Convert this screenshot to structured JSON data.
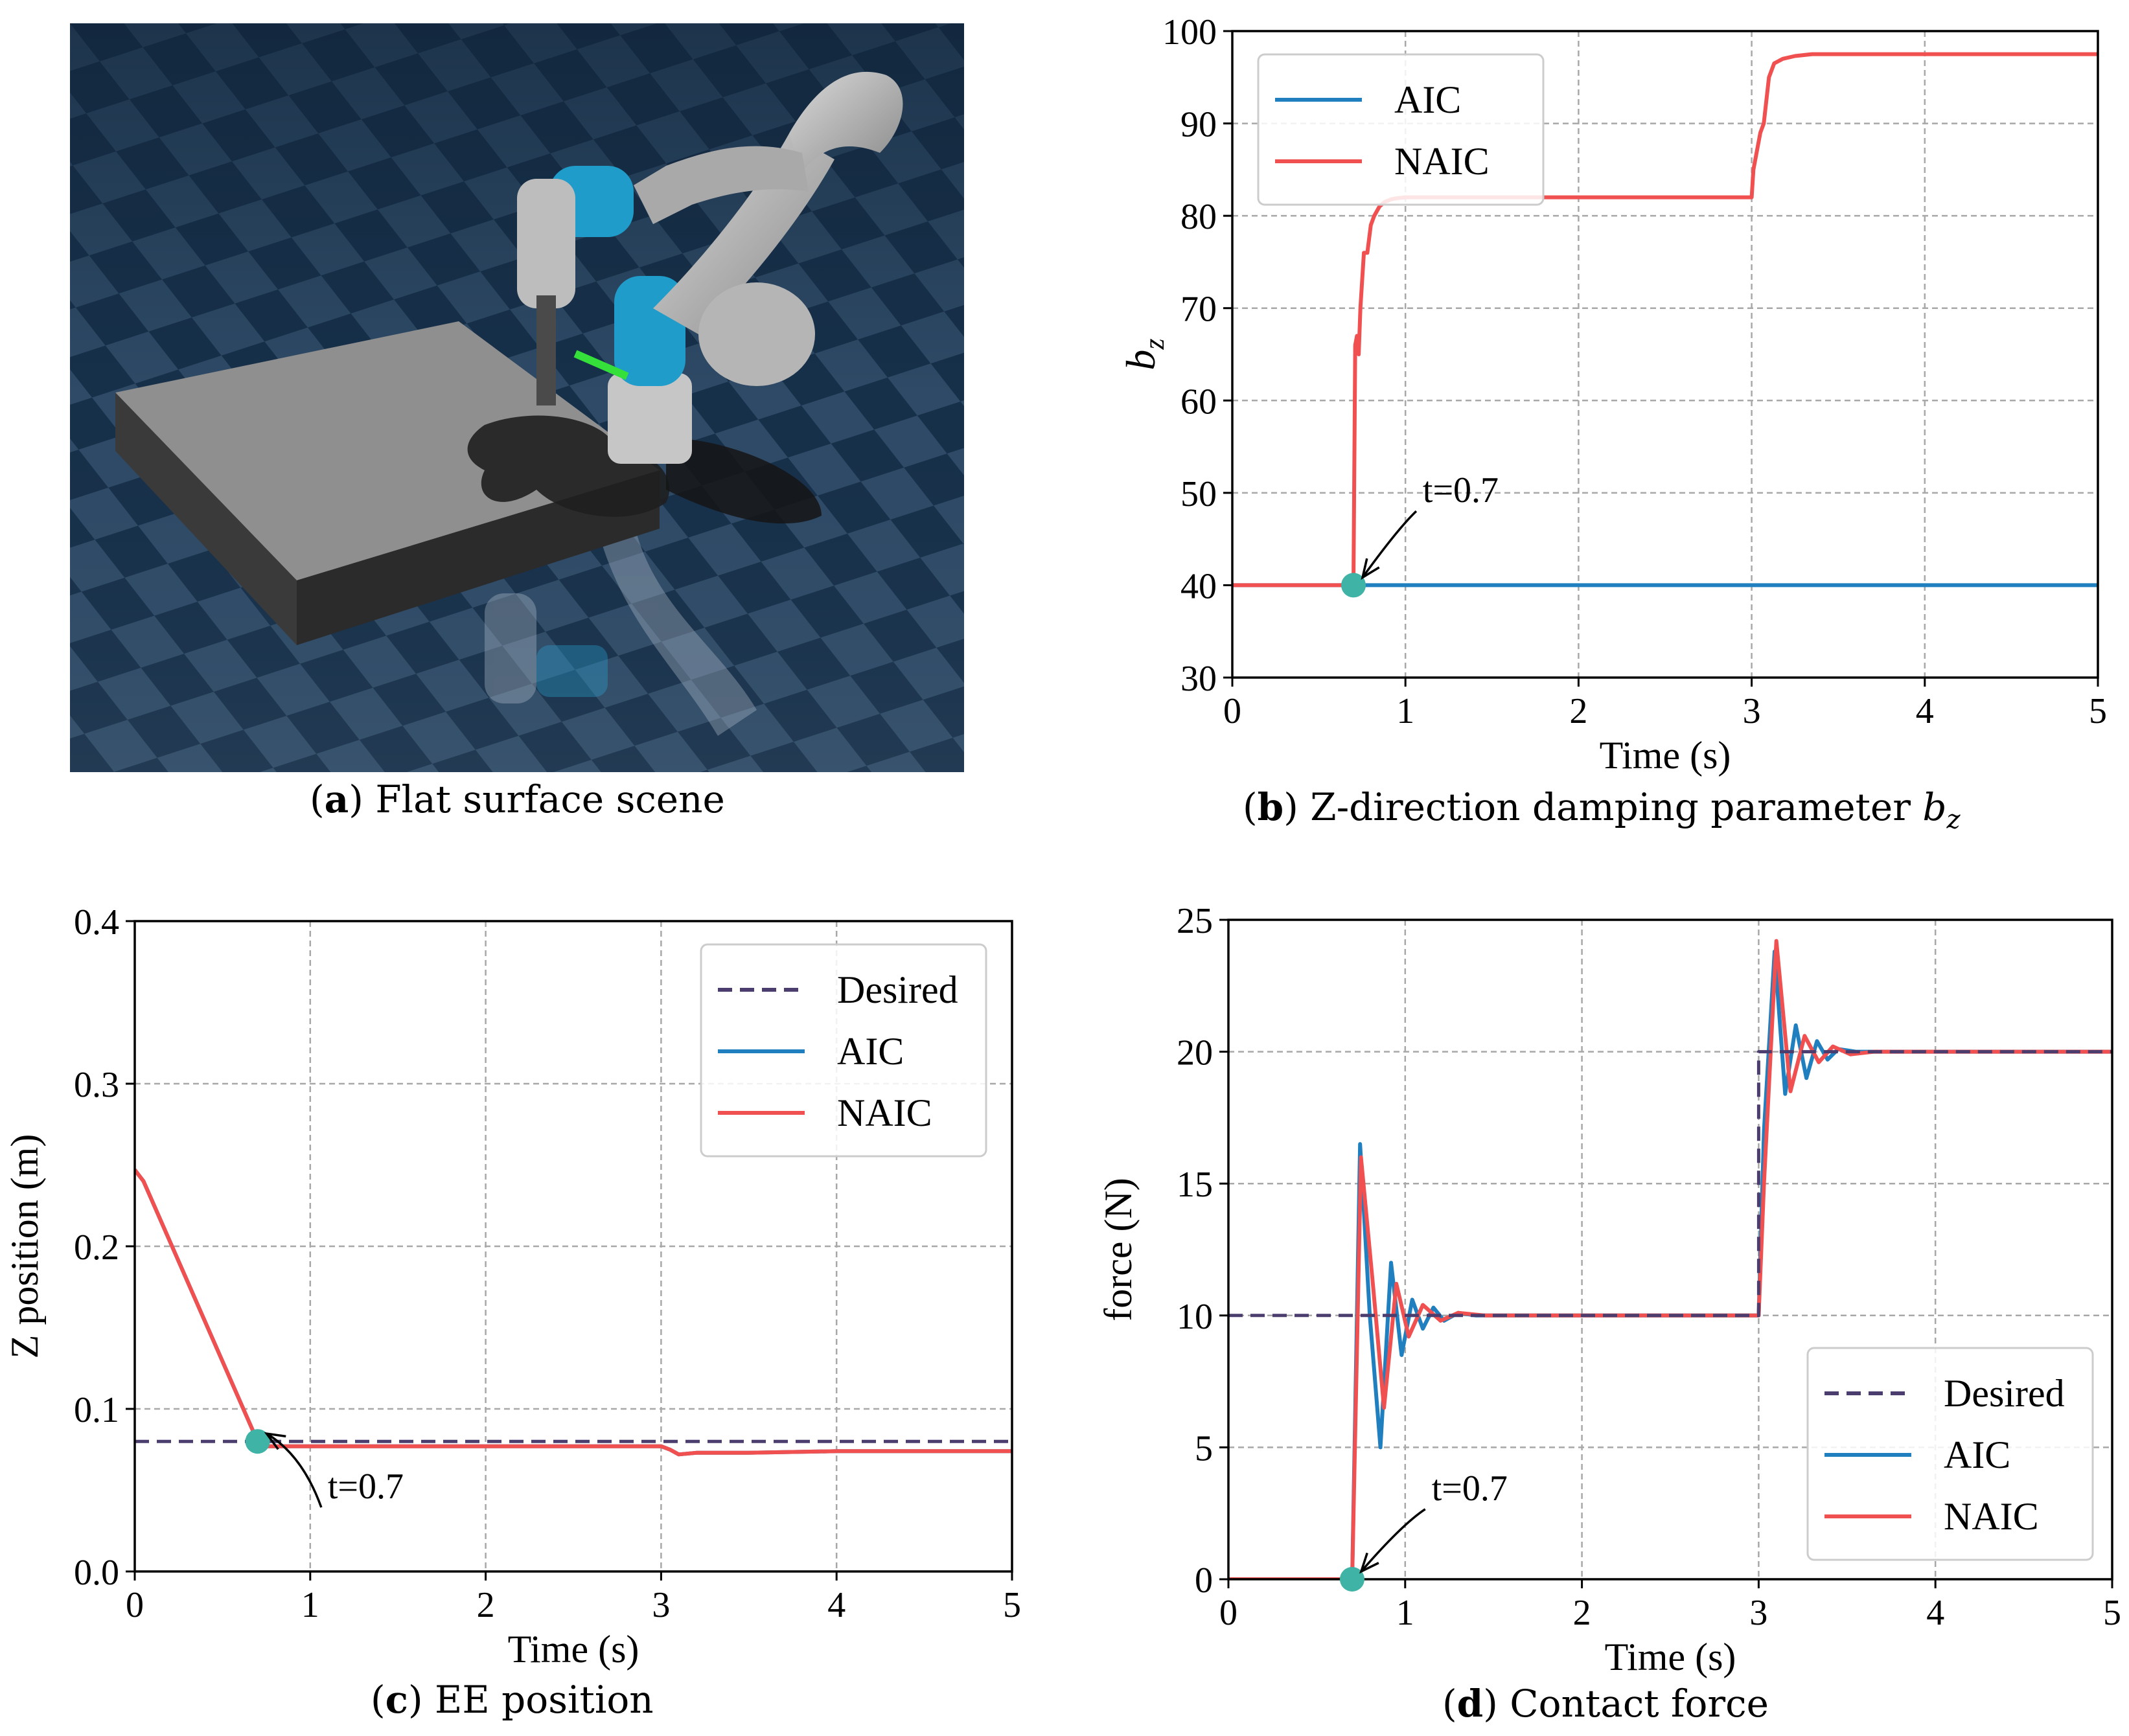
{
  "colors": {
    "aic": "#1f7fbf",
    "naic": "#f05050",
    "desired": "#4b3d6e",
    "marker": "#3fb3a6",
    "grid": "#a8a8a8"
  },
  "panel_a": {
    "caption_label": "a",
    "caption_text": "Flat surface scene"
  },
  "chart_data": [
    {
      "id": "b",
      "type": "line",
      "caption_label": "b",
      "caption_text": "Z-direction damping parameter ",
      "caption_symbol": "b",
      "caption_sub": "z",
      "xlabel": "Time (s)",
      "ylabel": "b",
      "ylabel_sub": "z",
      "xlim": [
        0,
        5
      ],
      "ylim": [
        30,
        100
      ],
      "xticks": [
        0,
        1,
        2,
        3,
        4,
        5
      ],
      "yticks": [
        30,
        40,
        50,
        60,
        70,
        80,
        90,
        100
      ],
      "grid": true,
      "legend_position": "top-left",
      "legend": [
        {
          "name": "AIC",
          "style": "solid",
          "color": "#1f7fbf"
        },
        {
          "name": "NAIC",
          "style": "solid",
          "color": "#f05050"
        }
      ],
      "annotation": {
        "text": "t=0.7",
        "x": 0.7,
        "y": 40,
        "text_x": 1.1,
        "text_y": 49
      },
      "series": [
        {
          "name": "AIC",
          "color": "#1f7fbf",
          "style": "solid",
          "x": [
            0,
            5
          ],
          "y": [
            40,
            40
          ]
        },
        {
          "name": "NAIC",
          "color": "#f05050",
          "style": "solid",
          "x": [
            0,
            0.68,
            0.7,
            0.71,
            0.72,
            0.73,
            0.74,
            0.75,
            0.76,
            0.78,
            0.8,
            0.82,
            0.85,
            0.88,
            0.92,
            0.95,
            1.0,
            1.5,
            2.0,
            2.5,
            3.0,
            3.01,
            3.05,
            3.07,
            3.1,
            3.13,
            3.18,
            3.25,
            3.35,
            3.5,
            4.0,
            5.0
          ],
          "y": [
            40,
            40,
            40,
            66,
            67,
            65,
            70,
            73,
            76,
            76,
            79,
            80,
            81,
            81.5,
            81.8,
            81.9,
            82,
            82,
            82,
            82,
            82,
            85,
            89,
            90,
            95,
            96.5,
            97,
            97.3,
            97.5,
            97.5,
            97.5,
            97.5
          ]
        }
      ]
    },
    {
      "id": "c",
      "type": "line",
      "caption_label": "c",
      "caption_text": "EE position",
      "xlabel": "Time (s)",
      "ylabel": "Z position (m)",
      "xlim": [
        0,
        5
      ],
      "ylim": [
        0.0,
        0.4
      ],
      "xticks": [
        0,
        1,
        2,
        3,
        4,
        5
      ],
      "yticks": [
        0.0,
        0.1,
        0.2,
        0.3,
        0.4
      ],
      "grid": true,
      "legend_position": "top-right",
      "legend": [
        {
          "name": "Desired",
          "style": "dashed",
          "color": "#4b3d6e"
        },
        {
          "name": "AIC",
          "style": "solid",
          "color": "#1f7fbf"
        },
        {
          "name": "NAIC",
          "style": "solid",
          "color": "#f05050"
        }
      ],
      "annotation": {
        "text": "t=0.7",
        "x": 0.7,
        "y": 0.08,
        "text_x": 1.1,
        "text_y": 0.045
      },
      "series": [
        {
          "name": "Desired",
          "color": "#4b3d6e",
          "style": "dashed",
          "x": [
            0,
            5
          ],
          "y": [
            0.08,
            0.08
          ]
        },
        {
          "name": "AIC",
          "color": "#1f7fbf",
          "style": "solid",
          "x": [
            0,
            0.05,
            0.7,
            0.75,
            1.0,
            2.0,
            3.0,
            3.05,
            3.1,
            3.2,
            3.5,
            4.0,
            5.0
          ],
          "y": [
            0.247,
            0.24,
            0.08,
            0.077,
            0.077,
            0.077,
            0.077,
            0.075,
            0.072,
            0.073,
            0.073,
            0.074,
            0.074
          ]
        },
        {
          "name": "NAIC",
          "color": "#f05050",
          "style": "solid",
          "x": [
            0,
            0.05,
            0.7,
            0.75,
            1.0,
            2.0,
            3.0,
            3.05,
            3.1,
            3.2,
            3.5,
            4.0,
            5.0
          ],
          "y": [
            0.247,
            0.24,
            0.08,
            0.077,
            0.077,
            0.077,
            0.077,
            0.075,
            0.072,
            0.073,
            0.073,
            0.074,
            0.074
          ]
        }
      ]
    },
    {
      "id": "d",
      "type": "line",
      "caption_label": "d",
      "caption_text": "Contact force",
      "xlabel": "Time (s)",
      "ylabel": "force (N)",
      "xlim": [
        0,
        5
      ],
      "ylim": [
        0,
        25
      ],
      "xticks": [
        0,
        1,
        2,
        3,
        4,
        5
      ],
      "yticks": [
        0,
        5,
        10,
        15,
        20,
        25
      ],
      "grid": true,
      "legend_position": "bottom-right",
      "legend": [
        {
          "name": "Desired",
          "style": "dashed",
          "color": "#4b3d6e"
        },
        {
          "name": "AIC",
          "style": "solid",
          "color": "#1f7fbf"
        },
        {
          "name": "NAIC",
          "style": "solid",
          "color": "#f05050"
        }
      ],
      "annotation": {
        "text": "t=0.7",
        "x": 0.7,
        "y": 0,
        "text_x": 1.15,
        "text_y": 3
      },
      "series": [
        {
          "name": "Desired",
          "color": "#4b3d6e",
          "style": "dashed",
          "x": [
            0,
            3.0,
            3.0,
            5
          ],
          "y": [
            10,
            10,
            20,
            20
          ]
        },
        {
          "name": "AIC",
          "color": "#1f7fbf",
          "style": "solid",
          "x": [
            0,
            0.68,
            0.7,
            0.745,
            0.8,
            0.86,
            0.92,
            0.98,
            1.04,
            1.1,
            1.16,
            1.22,
            1.3,
            1.4,
            1.6,
            2.0,
            2.5,
            2.99,
            3.0,
            3.03,
            3.09,
            3.15,
            3.21,
            3.27,
            3.33,
            3.39,
            3.45,
            3.55,
            3.7,
            4.0,
            5.0
          ],
          "y": [
            0,
            0,
            0,
            16.5,
            10,
            5,
            12,
            8.5,
            10.6,
            9.5,
            10.3,
            9.8,
            10.1,
            10,
            10,
            10,
            10,
            10,
            10,
            17,
            23.8,
            18.4,
            21,
            19,
            20.4,
            19.7,
            20.1,
            20,
            20,
            20,
            20
          ]
        },
        {
          "name": "NAIC",
          "color": "#f05050",
          "style": "solid",
          "x": [
            0,
            0.68,
            0.7,
            0.75,
            0.82,
            0.88,
            0.95,
            1.02,
            1.1,
            1.2,
            1.3,
            1.45,
            1.6,
            2.0,
            2.5,
            2.99,
            3.0,
            3.03,
            3.1,
            3.18,
            3.26,
            3.34,
            3.42,
            3.52,
            3.65,
            3.8,
            4.0,
            5.0
          ],
          "y": [
            0,
            0,
            0,
            16,
            11,
            6.5,
            11.2,
            9.2,
            10.4,
            9.8,
            10.1,
            10,
            10,
            10,
            10,
            10,
            10,
            15,
            24.2,
            18.5,
            20.6,
            19.6,
            20.2,
            19.9,
            20,
            20,
            20,
            20
          ]
        }
      ]
    }
  ]
}
